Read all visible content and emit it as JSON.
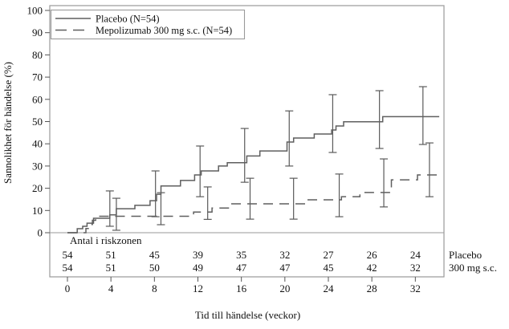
{
  "chart_data": {
    "type": "line",
    "subtype": "kaplan-meier-step",
    "title": "",
    "xlabel": "Tid till händelse (veckor)",
    "ylabel": "Sannolikhet för händelse (%)",
    "xticks": [
      0,
      4,
      8,
      12,
      16,
      20,
      24,
      28,
      32
    ],
    "yticks": [
      0,
      10,
      20,
      30,
      40,
      50,
      60,
      70,
      80,
      90,
      100
    ],
    "ylim": [
      0,
      100
    ],
    "xlim_weeks": [
      -1.6,
      34.6
    ],
    "grid": "off",
    "legend_position": "top-left",
    "colors": {
      "curve": "#5f5f5f",
      "error_bar": "#5a5a5a",
      "frame": "#9a9a9a",
      "text": "#111111"
    },
    "series": [
      {
        "name": "Placebo (N=54)",
        "style": "solid",
        "steps": [
          [
            0.9,
            1.8
          ],
          [
            1.4,
            2.9
          ],
          [
            1.8,
            4.3
          ],
          [
            2.4,
            6.5
          ],
          [
            3.9,
            8.0
          ],
          [
            4.5,
            10.8
          ],
          [
            6.2,
            12.3
          ],
          [
            7.6,
            14.4
          ],
          [
            8.2,
            17.3
          ],
          [
            8.6,
            21.0
          ],
          [
            10.4,
            23.5
          ],
          [
            11.7,
            26.0
          ],
          [
            12.3,
            27.8
          ],
          [
            13.9,
            30.0
          ],
          [
            14.7,
            31.5
          ],
          [
            16.5,
            34.5
          ],
          [
            17.7,
            36.8
          ],
          [
            20.2,
            40.8
          ],
          [
            20.8,
            42.6
          ],
          [
            22.7,
            44.4
          ],
          [
            24.3,
            46.2
          ],
          [
            24.7,
            48.0
          ],
          [
            25.4,
            49.9
          ],
          [
            29.0,
            52.2
          ]
        ],
        "end_week": 34.2,
        "final_value": 52.2,
        "error_bars": [
          {
            "week": 3.9,
            "lo": 2.9,
            "hi": 18.8
          },
          {
            "week": 8.1,
            "lo": 7.2,
            "hi": 27.8
          },
          {
            "week": 12.2,
            "lo": 16.2,
            "hi": 39.0
          },
          {
            "week": 16.3,
            "lo": 22.7,
            "hi": 46.9
          },
          {
            "week": 20.4,
            "lo": 30.0,
            "hi": 54.8
          },
          {
            "week": 24.4,
            "lo": 36.1,
            "hi": 62.1
          },
          {
            "week": 28.7,
            "lo": 37.9,
            "hi": 63.9
          },
          {
            "week": 32.7,
            "lo": 39.7,
            "hi": 65.7
          }
        ]
      },
      {
        "name": "Mepolizumab 300 mg s.c. (N=54)",
        "style": "dashed",
        "steps": [
          [
            1.7,
            1.9
          ],
          [
            2.0,
            3.7
          ],
          [
            2.3,
            5.6
          ],
          [
            2.6,
            7.4
          ],
          [
            11.6,
            9.3
          ],
          [
            13.3,
            11.1
          ],
          [
            14.9,
            13.0
          ],
          [
            21.9,
            14.8
          ],
          [
            25.2,
            16.2
          ],
          [
            26.9,
            18.1
          ],
          [
            29.8,
            23.8
          ],
          [
            32.2,
            26.0
          ]
        ],
        "end_week": 34.2,
        "final_value": 26.0,
        "error_bars": [
          {
            "week": 4.5,
            "lo": 1.1,
            "hi": 15.5
          },
          {
            "week": 8.6,
            "lo": 3.6,
            "hi": 18.0
          },
          {
            "week": 12.9,
            "lo": 6.0,
            "hi": 20.6
          },
          {
            "week": 16.8,
            "lo": 6.1,
            "hi": 24.5
          },
          {
            "week": 20.8,
            "lo": 6.1,
            "hi": 24.5
          },
          {
            "week": 25.0,
            "lo": 7.2,
            "hi": 26.4
          },
          {
            "week": 29.1,
            "lo": 11.6,
            "hi": 33.2
          },
          {
            "week": 33.3,
            "lo": 16.2,
            "hi": 40.4
          }
        ]
      }
    ],
    "risk_table": {
      "title": "Antal i riskzonen",
      "weeks": [
        0,
        4,
        8,
        12,
        16,
        20,
        24,
        28,
        32
      ],
      "rows": [
        {
          "label": "Placebo",
          "counts": [
            54,
            51,
            45,
            39,
            35,
            32,
            27,
            26,
            24
          ]
        },
        {
          "label": "300 mg s.c.",
          "counts": [
            54,
            51,
            50,
            49,
            47,
            47,
            45,
            42,
            32
          ]
        }
      ]
    }
  }
}
